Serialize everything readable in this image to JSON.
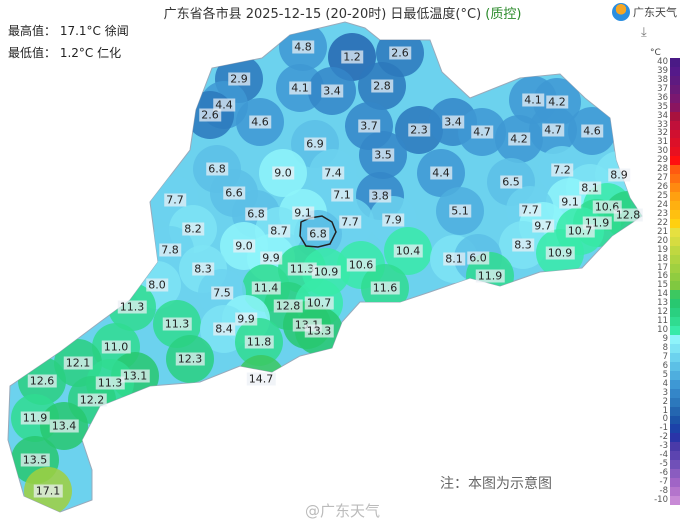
{
  "header": {
    "title": "广东省各市县 2025-12-15 (20-20时) 日最低温度(°C) ",
    "qc": "(质控)"
  },
  "stats": {
    "max": "最高值： 17.1°C 徐闻",
    "min": "最低值： 1.2°C 仁化"
  },
  "logo": {
    "text": "广东天气",
    "icon": "guangdong-weather-logo"
  },
  "download": {
    "icon": "download-icon",
    "glyph": "⤓"
  },
  "legend": {
    "unit": "°C",
    "ticks": [
      "40",
      "39",
      "38",
      "37",
      "36",
      "35",
      "34",
      "33",
      "32",
      "31",
      "30",
      "29",
      "28",
      "27",
      "26",
      "25",
      "24",
      "23",
      "22",
      "21",
      "20",
      "19",
      "18",
      "17",
      "16",
      "15",
      "14",
      "13",
      "12",
      "11",
      "10",
      "9",
      "8",
      "7",
      "6",
      "5",
      "4",
      "3",
      "2",
      "1",
      "0",
      "-1",
      "-2",
      "-3",
      "-4",
      "-5",
      "-6",
      "-7",
      "-8",
      "-10"
    ],
    "colors": [
      "#4a1a86",
      "#55198a",
      "#5e1a80",
      "#6a1a78",
      "#7a1870",
      "#8a1560",
      "#a8123e",
      "#c0103a",
      "#d01030",
      "#dc1028",
      "#e81020",
      "#ff1010",
      "#ff5a10",
      "#ff7010",
      "#ff8a10",
      "#ffa010",
      "#ffb010",
      "#ffc010",
      "#ffd010",
      "#e6e040",
      "#d6dc40",
      "#c0d840",
      "#b0d440",
      "#a0d040",
      "#90cc40",
      "#80c840",
      "#3cc860",
      "#28c870",
      "#2ad080",
      "#30dc90",
      "#38eaa8",
      "#8ef4fa",
      "#7ee4f4",
      "#6cd2ee",
      "#5cc0e6",
      "#4eaede",
      "#3e98d4",
      "#3486c8",
      "#2c78bc",
      "#2466b0",
      "#1c54a8",
      "#1c42a8",
      "#2a34a8",
      "#4a3aa8",
      "#5c44b0",
      "#7050b8",
      "#8a5cc0",
      "#a064c6",
      "#b474cc",
      "#c88ad6"
    ]
  },
  "stations": [
    {
      "v": "4.8"
    },
    {
      "v": "1.2"
    },
    {
      "v": "2.6"
    },
    {
      "v": "2.9"
    },
    {
      "v": "4.1"
    },
    {
      "v": "3.4"
    },
    {
      "v": "2.8"
    },
    {
      "v": "4.4"
    },
    {
      "v": "2.6"
    },
    {
      "v": "4.6"
    },
    {
      "v": "3.7"
    },
    {
      "v": "2.3"
    },
    {
      "v": "3.4"
    },
    {
      "v": "4.7"
    },
    {
      "v": "4.1"
    },
    {
      "v": "4.2"
    },
    {
      "v": "4.2"
    },
    {
      "v": "4.7"
    },
    {
      "v": "4.6"
    },
    {
      "v": "6.9"
    },
    {
      "v": "3.5"
    },
    {
      "v": "6.8"
    },
    {
      "v": "9.0"
    },
    {
      "v": "7.4"
    },
    {
      "v": "4.4"
    },
    {
      "v": "6.5"
    },
    {
      "v": "7.2"
    },
    {
      "v": "8.1"
    },
    {
      "v": "8.9"
    },
    {
      "v": "6.6"
    },
    {
      "v": "7.1"
    },
    {
      "v": "3.8"
    },
    {
      "v": "7.7"
    },
    {
      "v": "9.1"
    },
    {
      "v": "10.6"
    },
    {
      "v": "12.8"
    },
    {
      "v": "6.8"
    },
    {
      "v": "9.1"
    },
    {
      "v": "5.1"
    },
    {
      "v": "7.7"
    },
    {
      "v": "7.7"
    },
    {
      "v": "7.9"
    },
    {
      "v": "6.8"
    },
    {
      "v": "8.2"
    },
    {
      "v": "8.7"
    },
    {
      "v": "9.7"
    },
    {
      "v": "11.9"
    },
    {
      "v": "10.7"
    },
    {
      "v": "9.0"
    },
    {
      "v": "10.4"
    },
    {
      "v": "7.8"
    },
    {
      "v": "9.9"
    },
    {
      "v": "8.3"
    },
    {
      "v": "10.9"
    },
    {
      "v": "8.1"
    },
    {
      "v": "6.0"
    },
    {
      "v": "10.6"
    },
    {
      "v": "8.3"
    },
    {
      "v": "11.3"
    },
    {
      "v": "10.9"
    },
    {
      "v": "11.9"
    },
    {
      "v": "8.0"
    },
    {
      "v": "11.4"
    },
    {
      "v": "11.6"
    },
    {
      "v": "7.5"
    },
    {
      "v": "12.8"
    },
    {
      "v": "10.7"
    },
    {
      "v": "11.3"
    },
    {
      "v": "11.3"
    },
    {
      "v": "9.9"
    },
    {
      "v": "8.4"
    },
    {
      "v": "13.1"
    },
    {
      "v": "13.3"
    },
    {
      "v": "11.8"
    },
    {
      "v": "11.0"
    },
    {
      "v": "12.3"
    },
    {
      "v": "12.1"
    },
    {
      "v": "13.1"
    },
    {
      "v": "11.3"
    },
    {
      "v": "12.6"
    },
    {
      "v": "14.7"
    },
    {
      "v": "12.2"
    },
    {
      "v": "11.9"
    },
    {
      "v": "13.4"
    },
    {
      "v": "13.5"
    },
    {
      "v": "17.1"
    }
  ],
  "footer": {
    "note": "注：本图为示意图",
    "watermark": "@广东天气"
  }
}
